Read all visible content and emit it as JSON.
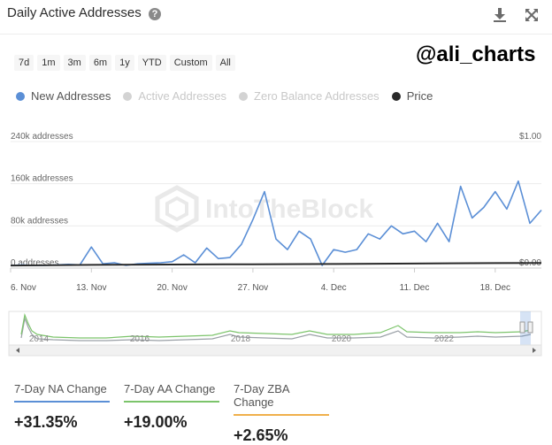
{
  "header": {
    "title": "Daily Active Addresses",
    "help_icon": "question-circle-icon",
    "download_icon": "download-icon",
    "expand_icon": "fullscreen-icon"
  },
  "ranges": [
    "7d",
    "1m",
    "3m",
    "6m",
    "1y",
    "YTD",
    "Custom",
    "All"
  ],
  "handle": "@ali_charts",
  "watermark": "IntoTheBlock",
  "legend": [
    {
      "name": "New Addresses",
      "color": "#5b8fd6",
      "active": true
    },
    {
      "name": "Active Addresses",
      "color": "#d3d3d3",
      "active": false
    },
    {
      "name": "Zero Balance Addresses",
      "color": "#d3d3d3",
      "active": false
    },
    {
      "name": "Price",
      "color": "#2a2a2a",
      "active": true
    }
  ],
  "chart_data": {
    "type": "line",
    "left_axis": {
      "ticks": [
        "240k addresses",
        "160k addresses",
        "80k addresses",
        "0 addresses"
      ],
      "values": [
        240000,
        160000,
        80000,
        0
      ],
      "ylim": [
        0,
        240000
      ]
    },
    "right_axis": {
      "ticks": [
        "$1.00",
        "$0.00"
      ],
      "values": [
        1.0,
        0.0
      ],
      "ylim": [
        0,
        1.0
      ]
    },
    "x_tick_labels": [
      "6. Nov",
      "13. Nov",
      "20. Nov",
      "27. Nov",
      "4. Dec",
      "11. Dec",
      "18. Dec"
    ],
    "x_tick_days": [
      0,
      7,
      14,
      21,
      28,
      35,
      42
    ],
    "series": [
      {
        "name": "New Addresses",
        "color": "#5b8fd6",
        "x_days": [
          0,
          1,
          2,
          3,
          4,
          5,
          6,
          7,
          8,
          9,
          10,
          11,
          12,
          13,
          14,
          15,
          16,
          17,
          18,
          19,
          20,
          21,
          22,
          23,
          24,
          25,
          26,
          27,
          28,
          29,
          30,
          31,
          32,
          33,
          34,
          35,
          36,
          37,
          38,
          39,
          40,
          41,
          42,
          43,
          44,
          45,
          46
        ],
        "values": [
          5000,
          6000,
          5000,
          5000,
          6000,
          7000,
          6000,
          40000,
          8000,
          10000,
          5000,
          8000,
          9000,
          10000,
          12000,
          25000,
          10000,
          38000,
          18000,
          20000,
          45000,
          92000,
          145000,
          55000,
          35000,
          70000,
          55000,
          5000,
          35000,
          30000,
          35000,
          65000,
          55000,
          80000,
          65000,
          70000,
          50000,
          85000,
          50000,
          155000,
          95000,
          115000,
          145000,
          112000,
          165000,
          85000,
          110000
        ]
      },
      {
        "name": "Price",
        "color": "#2a2a2a",
        "x_days": [
          0,
          7,
          14,
          21,
          28,
          35,
          42,
          46
        ],
        "values": [
          0.02,
          0.025,
          0.028,
          0.03,
          0.032,
          0.036,
          0.039,
          0.04
        ]
      }
    ],
    "navigator": {
      "tick_labels": [
        "2014",
        "2016",
        "2018",
        "2020",
        "2022"
      ]
    }
  },
  "stats": [
    {
      "label": "7-Day NA Change",
      "value": "+31.35%",
      "color": "#5b8fd6"
    },
    {
      "label": "7-Day AA Change",
      "value": "+19.00%",
      "color": "#7cc46b"
    },
    {
      "label": "7-Day ZBA Change",
      "value": "+2.65%",
      "color": "#f0b04b"
    }
  ]
}
